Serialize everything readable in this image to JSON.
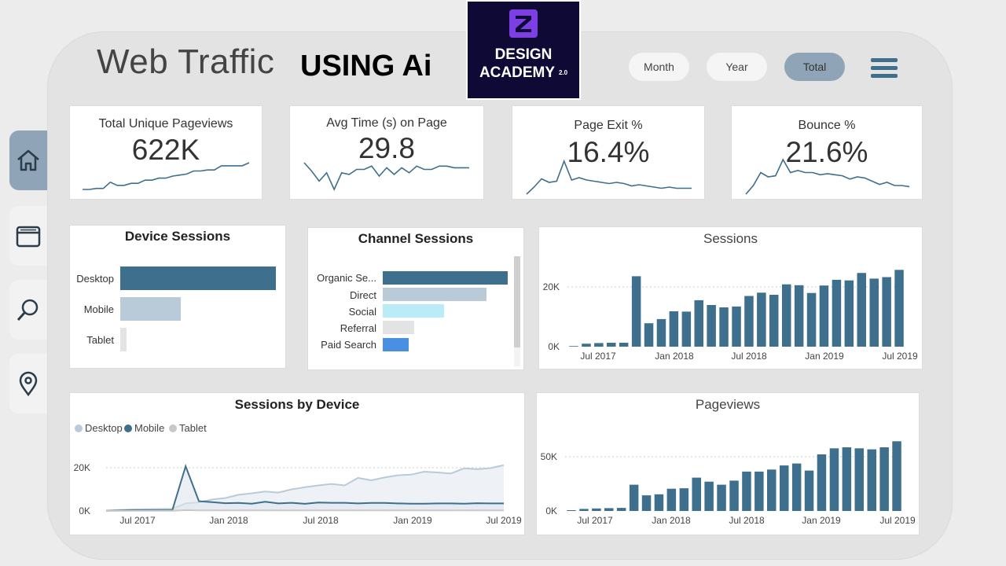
{
  "header": {
    "title": "Web Traffic",
    "subtitle": "USING Ai",
    "logo_line1": "DESIGN",
    "logo_line2": "ACADEMY",
    "logo_version": "2.0"
  },
  "filters": [
    {
      "label": "Month",
      "active": false
    },
    {
      "label": "Year",
      "active": false
    },
    {
      "label": "Total",
      "active": true
    }
  ],
  "sidebar": {
    "items": [
      {
        "icon": "home-icon",
        "active": true
      },
      {
        "icon": "window-icon",
        "active": false
      },
      {
        "icon": "search-icon",
        "active": false
      },
      {
        "icon": "location-pin-icon",
        "active": false
      }
    ]
  },
  "kpis": [
    {
      "label": "Total Unique Pageviews",
      "value": "622K",
      "trend": [
        2,
        2,
        3,
        3,
        9,
        6,
        6,
        8,
        8,
        11,
        11,
        13,
        13,
        15,
        16,
        17,
        20,
        20,
        21,
        21,
        25,
        25,
        25,
        25,
        28
      ]
    },
    {
      "label": "Avg Time (s) on Page",
      "value": "29.8",
      "trend": [
        20,
        15,
        9,
        14,
        4,
        14,
        13,
        16,
        16,
        18,
        12,
        17,
        13,
        17,
        14,
        18,
        16,
        16,
        18,
        18,
        17,
        17,
        17
      ]
    },
    {
      "label": "Page Exit %",
      "value": "16.4%",
      "trend": [
        2,
        8,
        15,
        12,
        13,
        30,
        14,
        16,
        14,
        13,
        12,
        11,
        12,
        11,
        9,
        10,
        9,
        8,
        7,
        8,
        7,
        7,
        7
      ]
    },
    {
      "label": "Bounce %",
      "value": "21.6%",
      "trend": [
        2,
        10,
        22,
        18,
        19,
        34,
        22,
        24,
        22,
        22,
        20,
        21,
        20,
        19,
        16,
        18,
        17,
        14,
        11,
        13,
        10,
        10,
        9
      ]
    }
  ],
  "device_sessions": {
    "title": "Device Sessions",
    "items": [
      {
        "label": "Desktop",
        "value": 1.0,
        "color": "#3e6f8d"
      },
      {
        "label": "Mobile",
        "value": 0.39,
        "color": "#b9cbd8"
      },
      {
        "label": "Tablet",
        "value": 0.04,
        "color": "#e3e3e3"
      }
    ]
  },
  "channel_sessions": {
    "title": "Channel Sessions",
    "items": [
      {
        "label": "Organic Se...",
        "value": 1.0,
        "color": "#3e6f8d"
      },
      {
        "label": "Direct",
        "value": 0.83,
        "color": "#b9cbd8"
      },
      {
        "label": "Social",
        "value": 0.49,
        "color": "#b9ecf6"
      },
      {
        "label": "Referral",
        "value": 0.25,
        "color": "#e3e3e3"
      },
      {
        "label": "Paid Search",
        "value": 0.21,
        "color": "#4a90e2"
      }
    ]
  },
  "chart_data": [
    {
      "type": "bar",
      "title": "Sessions",
      "x_ticks": [
        "Jul 2017",
        "Jan 2018",
        "Jul 2018",
        "Jan 2019",
        "Jul 2019"
      ],
      "y_ticks": [
        "0K",
        "20K"
      ],
      "ylim": [
        0,
        27000
      ],
      "values": [
        200,
        1000,
        1200,
        1300,
        1300,
        23500,
        7800,
        9200,
        11800,
        11700,
        15500,
        13900,
        13100,
        13400,
        16900,
        18000,
        17300,
        20800,
        20500,
        17900,
        20400,
        22300,
        22100,
        24600,
        22700,
        23200,
        25600
      ],
      "color": "#3e6f8d"
    },
    {
      "type": "line",
      "title": "Sessions by Device",
      "legend": [
        "Desktop",
        "Mobile",
        "Tablet"
      ],
      "x_ticks": [
        "Jul 2017",
        "Jan 2018",
        "Jul 2018",
        "Jan 2019",
        "Jul 2019"
      ],
      "y_ticks": [
        "0K",
        "20K"
      ],
      "ylim": [
        0,
        24000
      ],
      "series": [
        {
          "name": "Desktop",
          "color": "#b9cbd8",
          "values": [
            100,
            500,
            700,
            800,
            900,
            1000,
            3500,
            4000,
            5300,
            6000,
            7500,
            8200,
            9000,
            8500,
            10000,
            11000,
            11800,
            12500,
            11800,
            15300,
            14200,
            15500,
            16500,
            16800,
            18200,
            17800,
            17300,
            19700,
            19300,
            19800,
            21200
          ]
        },
        {
          "name": "Mobile",
          "color": "#3e6f8d",
          "values": [
            100,
            300,
            400,
            400,
            400,
            400,
            20700,
            4500,
            4100,
            3600,
            3700,
            3400,
            4300,
            3500,
            3800,
            3300,
            3900,
            3800,
            3800,
            3500,
            3700,
            3700,
            3500,
            3400,
            3400,
            3500,
            3500,
            3400,
            3600,
            3500,
            3500
          ]
        },
        {
          "name": "Tablet",
          "color": "#c8c8c8",
          "values": [
            50,
            60,
            60,
            60,
            60,
            60,
            400,
            300,
            300,
            300,
            300,
            300,
            300,
            300,
            300,
            300,
            300,
            300,
            300,
            300,
            300,
            300,
            300,
            300,
            300,
            300,
            300,
            300,
            300,
            300,
            300
          ]
        }
      ]
    },
    {
      "type": "bar",
      "title": "Pageviews",
      "x_ticks": [
        "Jul 2017",
        "Jan 2018",
        "Jul 2018",
        "Jan 2019",
        "Jul 2019"
      ],
      "y_ticks": [
        "0K",
        "50K"
      ],
      "ylim": [
        0,
        70000
      ],
      "values": [
        800,
        2000,
        2500,
        2800,
        3000,
        26000,
        15500,
        16500,
        22000,
        22500,
        33000,
        29000,
        26000,
        30000,
        39000,
        39000,
        41000,
        45000,
        47000,
        40000,
        56000,
        62000,
        63000,
        62000,
        61000,
        63000,
        69000
      ],
      "color": "#3e6f8d"
    }
  ]
}
